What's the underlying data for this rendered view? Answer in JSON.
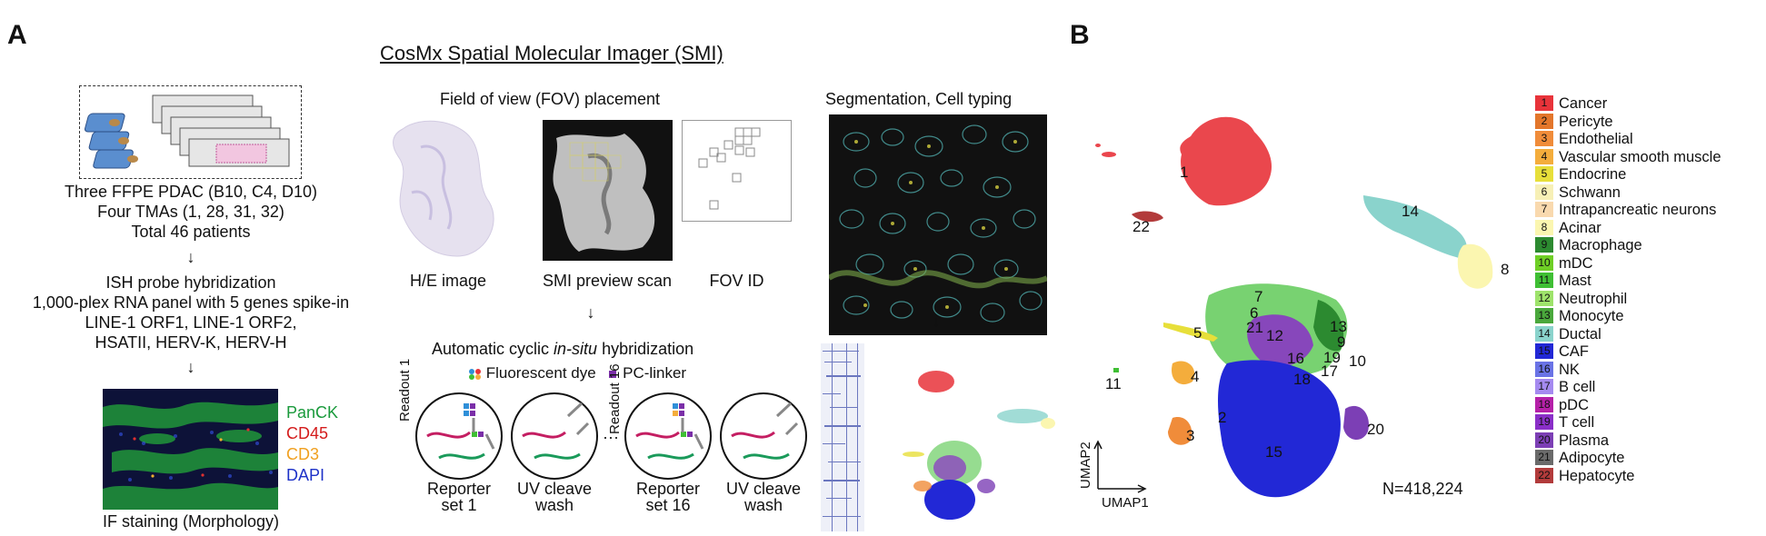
{
  "panel_a": {
    "letter": "A",
    "smi_title": "CosMx Spatial Molecular Imager (SMI)",
    "samples": [
      "Three FFPE PDAC (B10, C4, D10)",
      "Four TMAs (1, 28, 31, 32)",
      "Total 46 patients"
    ],
    "ish": [
      "ISH probe hybridization",
      "1,000-plex RNA panel with 5 genes spike-in",
      "LINE-1 ORF1, LINE-1 ORF2,",
      "HSATII, HERV-K, HERV-H"
    ],
    "if_markers": [
      {
        "name": "PanCK",
        "color": "#1a9a3c"
      },
      {
        "name": "CD45",
        "color": "#d41c1c"
      },
      {
        "name": "CD3",
        "color": "#f0a020"
      },
      {
        "name": "DAPI",
        "color": "#1e32c8"
      }
    ],
    "if_caption": "IF staining (Morphology)",
    "fov_title": "Field of view (FOV) placement",
    "fov_labels": [
      "H/E image",
      "SMI preview scan",
      "FOV ID"
    ],
    "cyclic_prefix": "Automatic cyclic ",
    "cyclic_italic": "in-situ",
    "cyclic_suffix": " hybridization",
    "key_dye": "Fluorescent dye",
    "key_linker": "PC-linker",
    "readout_1": "Readout 1",
    "readout_16": "Readout 16",
    "ellipsis": "···",
    "steps": [
      "Reporter set 1",
      "UV cleave wash",
      "Reporter set 16",
      "UV cleave wash"
    ],
    "step_lines": [
      [
        "Reporter",
        "set 1"
      ],
      [
        "UV cleave",
        "wash"
      ],
      [
        "Reporter",
        "set 16"
      ],
      [
        "UV cleave",
        "wash"
      ]
    ],
    "seg_title": "Segmentation, Cell typing",
    "arrow": "↓"
  },
  "panel_b": {
    "letter": "B",
    "axis_x": "UMAP1",
    "axis_y": "UMAP2",
    "count": "N=418,224",
    "legend": [
      {
        "id": "1",
        "name": "Cancer",
        "color": "#e8333a"
      },
      {
        "id": "2",
        "name": "Pericyte",
        "color": "#e3762b"
      },
      {
        "id": "3",
        "name": "Endothelial",
        "color": "#f08c3a"
      },
      {
        "id": "4",
        "name": "Vascular smooth muscle",
        "color": "#f4ad3c"
      },
      {
        "id": "5",
        "name": "Endocrine",
        "color": "#e7df3a"
      },
      {
        "id": "6",
        "name": "Schwann",
        "color": "#f7f0b6"
      },
      {
        "id": "7",
        "name": "Intrapancreatic neurons",
        "color": "#f9d9ae"
      },
      {
        "id": "8",
        "name": "Acinar",
        "color": "#fbf6b0"
      },
      {
        "id": "9",
        "name": "Macrophage",
        "color": "#2c8a30"
      },
      {
        "id": "10",
        "name": "mDC",
        "color": "#6fcf26"
      },
      {
        "id": "11",
        "name": "Mast",
        "color": "#3fbf34"
      },
      {
        "id": "12",
        "name": "Neutrophil",
        "color": "#9ee36b"
      },
      {
        "id": "13",
        "name": "Monocyte",
        "color": "#4aa83c"
      },
      {
        "id": "14",
        "name": "Ductal",
        "color": "#8ad3cc"
      },
      {
        "id": "15",
        "name": "CAF",
        "color": "#2228d6"
      },
      {
        "id": "16",
        "name": "NK",
        "color": "#6a73e6"
      },
      {
        "id": "17",
        "name": "B cell",
        "color": "#a58af0"
      },
      {
        "id": "18",
        "name": "pDC",
        "color": "#b520a8"
      },
      {
        "id": "19",
        "name": "T cell",
        "color": "#8a2fc8"
      },
      {
        "id": "20",
        "name": "Plasma",
        "color": "#7c3fb5"
      },
      {
        "id": "21",
        "name": "Adipocyte",
        "color": "#6a6a6a"
      },
      {
        "id": "22",
        "name": "Hepatocyte",
        "color": "#b23b3b"
      }
    ],
    "cluster_labels": [
      "1",
      "2",
      "3",
      "4",
      "5",
      "6",
      "7",
      "8",
      "9",
      "10",
      "11",
      "12",
      "13",
      "14",
      "15",
      "16",
      "17",
      "18",
      "19",
      "20",
      "21",
      "22"
    ]
  }
}
